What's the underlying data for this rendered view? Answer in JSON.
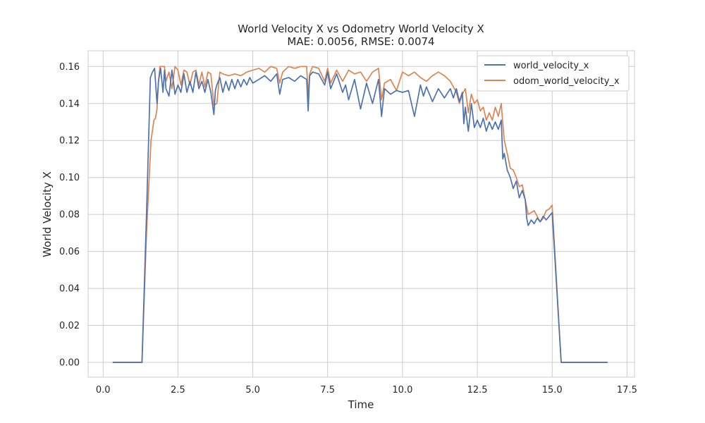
{
  "chart_data": {
    "type": "line",
    "title": "World Velocity X vs Odometry World Velocity X",
    "subtitle": "MAE: 0.0056, RMSE: 0.0074",
    "xlabel": "Time",
    "ylabel": "World Velocity X",
    "xlim": [
      -0.5,
      17.75
    ],
    "ylim": [
      -0.008,
      0.1685
    ],
    "x_ticks": [
      "0.0",
      "2.5",
      "5.0",
      "7.5",
      "10.0",
      "12.5",
      "15.0",
      "17.5"
    ],
    "x_tick_values": [
      0,
      2.5,
      5,
      7.5,
      10,
      12.5,
      15,
      17.5
    ],
    "y_ticks": [
      "0.00",
      "0.02",
      "0.04",
      "0.06",
      "0.08",
      "0.10",
      "0.12",
      "0.14",
      "0.16"
    ],
    "y_tick_values": [
      0,
      0.02,
      0.04,
      0.06,
      0.08,
      0.1,
      0.12,
      0.14,
      0.16
    ],
    "grid": true,
    "legend_position": "top-right",
    "series": [
      {
        "name": "world_velocity_x",
        "color": "#4c72b0",
        "x": [
          0.32,
          1.3,
          1.45,
          1.58,
          1.65,
          1.72,
          1.8,
          1.85,
          1.92,
          2.0,
          2.05,
          2.1,
          2.2,
          2.3,
          2.4,
          2.5,
          2.6,
          2.7,
          2.8,
          2.9,
          3.0,
          3.1,
          3.2,
          3.3,
          3.4,
          3.5,
          3.6,
          3.7,
          3.75,
          3.8,
          3.9,
          4.0,
          4.1,
          4.2,
          4.3,
          4.4,
          4.5,
          4.6,
          4.7,
          4.8,
          4.9,
          5.0,
          5.2,
          5.4,
          5.6,
          5.8,
          5.9,
          6.0,
          6.2,
          6.4,
          6.6,
          6.8,
          6.85,
          6.9,
          7.0,
          7.2,
          7.4,
          7.5,
          7.6,
          7.8,
          8.0,
          8.1,
          8.2,
          8.4,
          8.6,
          8.8,
          9.0,
          9.2,
          9.3,
          9.4,
          9.6,
          9.8,
          10.0,
          10.2,
          10.4,
          10.6,
          10.7,
          10.8,
          11.0,
          11.2,
          11.4,
          11.6,
          11.7,
          11.8,
          11.9,
          12.0,
          12.05,
          12.1,
          12.2,
          12.3,
          12.4,
          12.5,
          12.6,
          12.7,
          12.8,
          12.9,
          13.0,
          13.1,
          13.2,
          13.3,
          13.35,
          13.4,
          13.5,
          13.6,
          13.7,
          13.8,
          13.9,
          14.0,
          14.1,
          14.15,
          14.2,
          14.3,
          14.4,
          14.5,
          14.6,
          14.7,
          14.8,
          14.9,
          15.0,
          15.3,
          16.85
        ],
        "y": [
          0.0,
          0.0,
          0.08,
          0.154,
          0.157,
          0.159,
          0.14,
          0.152,
          0.159,
          0.146,
          0.158,
          0.148,
          0.144,
          0.158,
          0.145,
          0.15,
          0.146,
          0.156,
          0.146,
          0.152,
          0.146,
          0.157,
          0.148,
          0.152,
          0.146,
          0.153,
          0.146,
          0.134,
          0.147,
          0.15,
          0.154,
          0.146,
          0.152,
          0.147,
          0.153,
          0.148,
          0.153,
          0.149,
          0.153,
          0.15,
          0.154,
          0.151,
          0.153,
          0.155,
          0.152,
          0.156,
          0.145,
          0.153,
          0.154,
          0.152,
          0.155,
          0.153,
          0.136,
          0.155,
          0.157,
          0.156,
          0.15,
          0.157,
          0.148,
          0.156,
          0.146,
          0.15,
          0.142,
          0.153,
          0.137,
          0.151,
          0.14,
          0.153,
          0.133,
          0.148,
          0.145,
          0.147,
          0.146,
          0.147,
          0.133,
          0.15,
          0.144,
          0.149,
          0.141,
          0.148,
          0.143,
          0.148,
          0.143,
          0.148,
          0.141,
          0.146,
          0.129,
          0.138,
          0.125,
          0.14,
          0.127,
          0.131,
          0.127,
          0.132,
          0.125,
          0.13,
          0.126,
          0.13,
          0.126,
          0.131,
          0.11,
          0.113,
          0.104,
          0.1,
          0.094,
          0.098,
          0.089,
          0.093,
          0.088,
          0.078,
          0.074,
          0.077,
          0.075,
          0.078,
          0.076,
          0.079,
          0.077,
          0.079,
          0.081,
          0.0,
          0.0
        ]
      },
      {
        "name": "odom_world_velocity_x",
        "color": "#dd8452",
        "x": [
          0.32,
          1.3,
          1.45,
          1.6,
          1.7,
          1.75,
          1.8,
          1.85,
          1.9,
          1.95,
          2.05,
          2.1,
          2.2,
          2.3,
          2.4,
          2.5,
          2.6,
          2.7,
          2.8,
          2.9,
          3.0,
          3.1,
          3.2,
          3.3,
          3.4,
          3.5,
          3.6,
          3.7,
          3.8,
          3.9,
          4.0,
          4.2,
          4.4,
          4.6,
          4.8,
          5.0,
          5.2,
          5.4,
          5.6,
          5.8,
          5.9,
          6.0,
          6.2,
          6.4,
          6.6,
          6.8,
          6.85,
          6.9,
          7.0,
          7.2,
          7.4,
          7.5,
          7.6,
          7.8,
          8.0,
          8.2,
          8.4,
          8.6,
          8.8,
          9.0,
          9.2,
          9.3,
          9.4,
          9.6,
          9.8,
          10.0,
          10.2,
          10.4,
          10.6,
          10.8,
          11.0,
          11.2,
          11.4,
          11.6,
          11.8,
          11.9,
          12.0,
          12.1,
          12.2,
          12.3,
          12.4,
          12.5,
          12.6,
          12.7,
          12.8,
          12.9,
          13.0,
          13.1,
          13.2,
          13.3,
          13.35,
          13.4,
          13.5,
          13.6,
          13.7,
          13.8,
          13.9,
          14.0,
          14.1,
          14.2,
          14.3,
          14.4,
          14.5,
          14.6,
          14.7,
          14.8,
          14.9,
          15.0,
          15.3,
          16.85
        ],
        "y": [
          0.0,
          0.0,
          0.07,
          0.12,
          0.131,
          0.132,
          0.137,
          0.152,
          0.16,
          0.16,
          0.16,
          0.152,
          0.157,
          0.148,
          0.16,
          0.158,
          0.15,
          0.158,
          0.157,
          0.15,
          0.157,
          0.158,
          0.15,
          0.157,
          0.149,
          0.157,
          0.156,
          0.139,
          0.14,
          0.157,
          0.156,
          0.155,
          0.156,
          0.155,
          0.157,
          0.158,
          0.159,
          0.157,
          0.16,
          0.159,
          0.151,
          0.157,
          0.16,
          0.159,
          0.16,
          0.16,
          0.144,
          0.156,
          0.16,
          0.159,
          0.152,
          0.159,
          0.151,
          0.158,
          0.152,
          0.158,
          0.156,
          0.157,
          0.152,
          0.157,
          0.159,
          0.142,
          0.151,
          0.153,
          0.147,
          0.157,
          0.155,
          0.157,
          0.154,
          0.152,
          0.155,
          0.157,
          0.155,
          0.152,
          0.146,
          0.14,
          0.145,
          0.148,
          0.135,
          0.145,
          0.14,
          0.142,
          0.136,
          0.138,
          0.131,
          0.135,
          0.131,
          0.138,
          0.133,
          0.14,
          0.129,
          0.12,
          0.113,
          0.105,
          0.104,
          0.1,
          0.095,
          0.096,
          0.088,
          0.08,
          0.081,
          0.082,
          0.079,
          0.076,
          0.078,
          0.082,
          0.083,
          0.085,
          0.0,
          0.0
        ]
      }
    ]
  }
}
